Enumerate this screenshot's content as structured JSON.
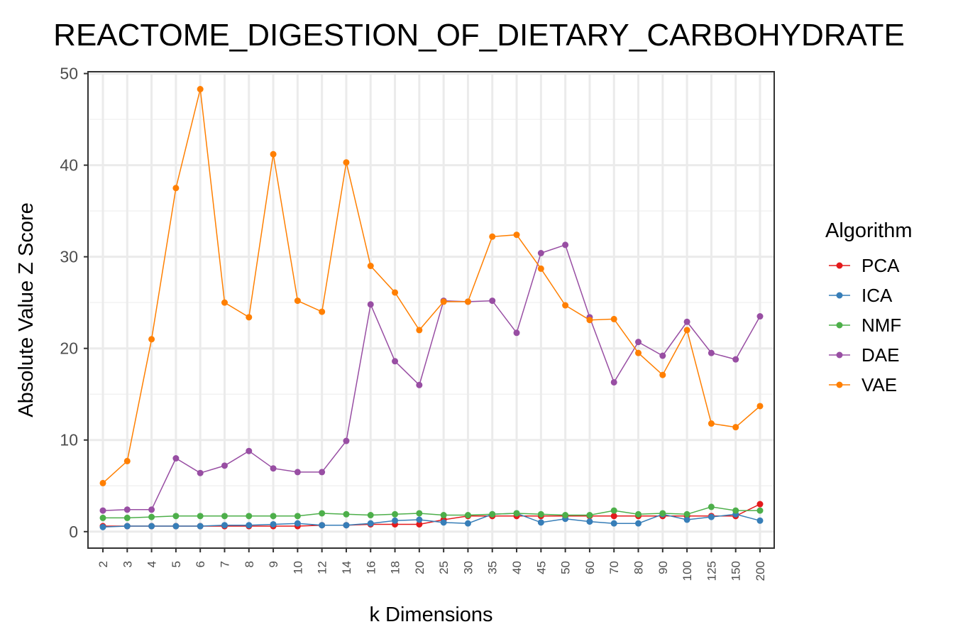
{
  "chart_data": {
    "type": "line",
    "title": "REACTOME_DIGESTION_OF_DIETARY_CARBOHYDRATE",
    "xlabel": "k Dimensions",
    "ylabel": "Absolute Value Z Score",
    "categories": [
      "2",
      "3",
      "4",
      "5",
      "6",
      "7",
      "8",
      "9",
      "10",
      "12",
      "14",
      "16",
      "18",
      "20",
      "25",
      "30",
      "35",
      "40",
      "45",
      "50",
      "60",
      "70",
      "80",
      "90",
      "100",
      "125",
      "150",
      "200"
    ],
    "ylim": [
      -1.8,
      50.2
    ],
    "yticks": [
      0,
      10,
      20,
      30,
      40,
      50
    ],
    "grid": true,
    "legend": {
      "title": "Algorithm",
      "position": "right"
    },
    "series": [
      {
        "name": "PCA",
        "color": "#E41A1C",
        "values": [
          0.6,
          0.6,
          0.6,
          0.6,
          0.6,
          0.6,
          0.6,
          0.6,
          0.6,
          0.7,
          0.7,
          0.8,
          0.8,
          0.8,
          1.3,
          1.7,
          1.7,
          1.7,
          1.7,
          1.7,
          1.7,
          1.7,
          1.7,
          1.7,
          1.7,
          1.7,
          1.7,
          3.0
        ]
      },
      {
        "name": "ICA",
        "color": "#377EB8",
        "values": [
          0.5,
          0.6,
          0.6,
          0.6,
          0.6,
          0.7,
          0.7,
          0.8,
          0.9,
          0.7,
          0.7,
          0.9,
          1.2,
          1.3,
          1.0,
          0.9,
          1.9,
          2.0,
          1.0,
          1.4,
          1.1,
          0.9,
          0.9,
          1.9,
          1.3,
          1.6,
          1.9,
          1.2
        ]
      },
      {
        "name": "NMF",
        "color": "#4DAF4A",
        "values": [
          1.5,
          1.5,
          1.6,
          1.7,
          1.7,
          1.7,
          1.7,
          1.7,
          1.7,
          2.0,
          1.9,
          1.8,
          1.9,
          2.0,
          1.8,
          1.8,
          1.9,
          2.0,
          1.9,
          1.8,
          1.8,
          2.3,
          1.9,
          2.0,
          1.9,
          2.7,
          2.3,
          2.3
        ]
      },
      {
        "name": "DAE",
        "color": "#984EA3",
        "values": [
          2.3,
          2.4,
          2.4,
          8.0,
          6.4,
          7.2,
          8.8,
          6.9,
          6.5,
          6.5,
          9.9,
          24.8,
          18.6,
          16.0,
          25.2,
          25.1,
          25.2,
          21.7,
          30.4,
          31.3,
          23.4,
          16.3,
          20.7,
          19.2,
          22.9,
          19.5,
          18.8,
          23.5
        ]
      },
      {
        "name": "VAE",
        "color": "#FF7F00",
        "values": [
          5.3,
          7.7,
          21.0,
          37.5,
          48.3,
          25.0,
          23.4,
          41.2,
          25.2,
          24.0,
          40.3,
          29.0,
          26.1,
          22.0,
          25.1,
          25.1,
          32.2,
          32.4,
          28.7,
          24.7,
          23.1,
          23.2,
          19.5,
          17.1,
          22.0,
          11.8,
          11.4,
          13.7
        ]
      }
    ]
  }
}
